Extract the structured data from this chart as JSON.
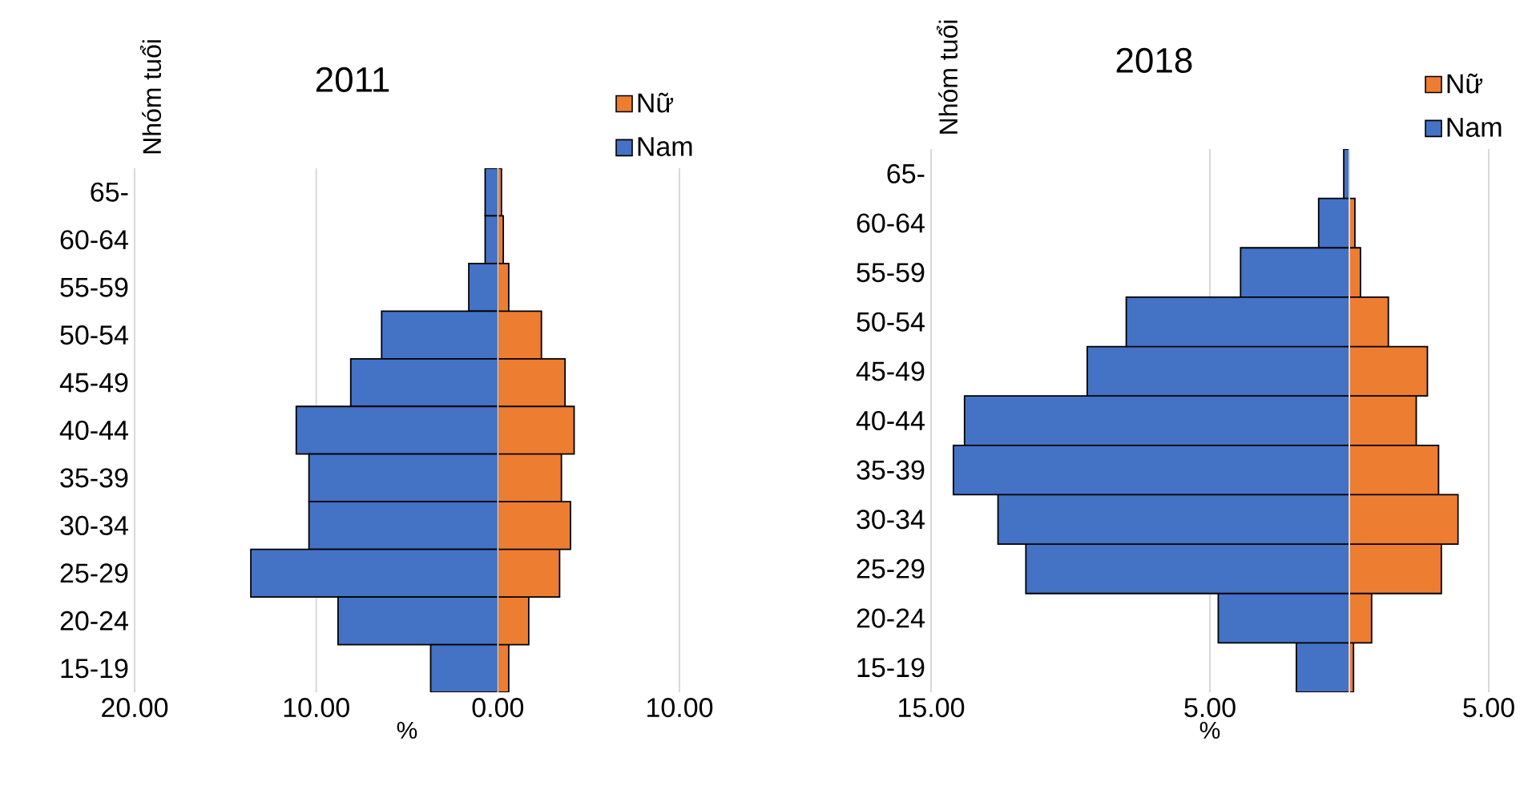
{
  "chart_data": [
    {
      "type": "bar",
      "orientation": "horizontal",
      "stacked": true,
      "title": "2011",
      "xlabel": "%",
      "ylabel": "Nhóm tuổi",
      "categories": [
        "65-",
        "60-64",
        "55-59",
        "50-54",
        "45-49",
        "40-44",
        "35-39",
        "30-34",
        "25-29",
        "20-24",
        "15-19"
      ],
      "series": [
        {
          "name": "Nữ",
          "color": "#ed7d31",
          "values": [
            0.2,
            0.3,
            0.6,
            2.4,
            3.7,
            4.2,
            3.5,
            4.0,
            3.4,
            1.7,
            0.6
          ]
        },
        {
          "name": "Nam",
          "color": "#4472c4",
          "values": [
            -0.7,
            -0.7,
            -1.6,
            -6.4,
            -8.1,
            -11.1,
            -10.4,
            -10.4,
            -13.6,
            -8.8,
            -3.7
          ]
        }
      ],
      "xlim": [
        -20,
        10
      ],
      "xticks": [
        {
          "value": -20,
          "label": "20.00"
        },
        {
          "value": -10,
          "label": "10.00"
        },
        {
          "value": 0,
          "label": "0.00"
        },
        {
          "value": 10,
          "label": "10.00"
        }
      ],
      "grid": "x",
      "legend": "top right"
    },
    {
      "type": "bar",
      "orientation": "horizontal",
      "stacked": true,
      "title": "2018",
      "xlabel": "%",
      "ylabel": "Nhóm tuổi",
      "categories": [
        "65-",
        "60-64",
        "55-59",
        "50-54",
        "45-49",
        "40-44",
        "35-39",
        "30-34",
        "25-29",
        "20-24",
        "15-19"
      ],
      "series": [
        {
          "name": "Nữ",
          "color": "#ed7d31",
          "values": [
            null,
            0.2,
            0.4,
            1.4,
            2.8,
            2.4,
            3.2,
            3.9,
            3.3,
            0.8,
            0.15
          ]
        },
        {
          "name": "Nam",
          "color": "#4472c4",
          "values": [
            -0.2,
            -1.1,
            -3.9,
            -8.0,
            -9.4,
            -13.8,
            -14.2,
            -12.6,
            -11.6,
            -4.7,
            -1.9
          ]
        }
      ],
      "xlim": [
        -15,
        5
      ],
      "xticks": [
        {
          "value": -15,
          "label": "15.00"
        },
        {
          "value": -5,
          "label": "5.00"
        },
        {
          "value": 5,
          "label": "5.00"
        }
      ],
      "grid": "x",
      "legend": "top right"
    }
  ]
}
